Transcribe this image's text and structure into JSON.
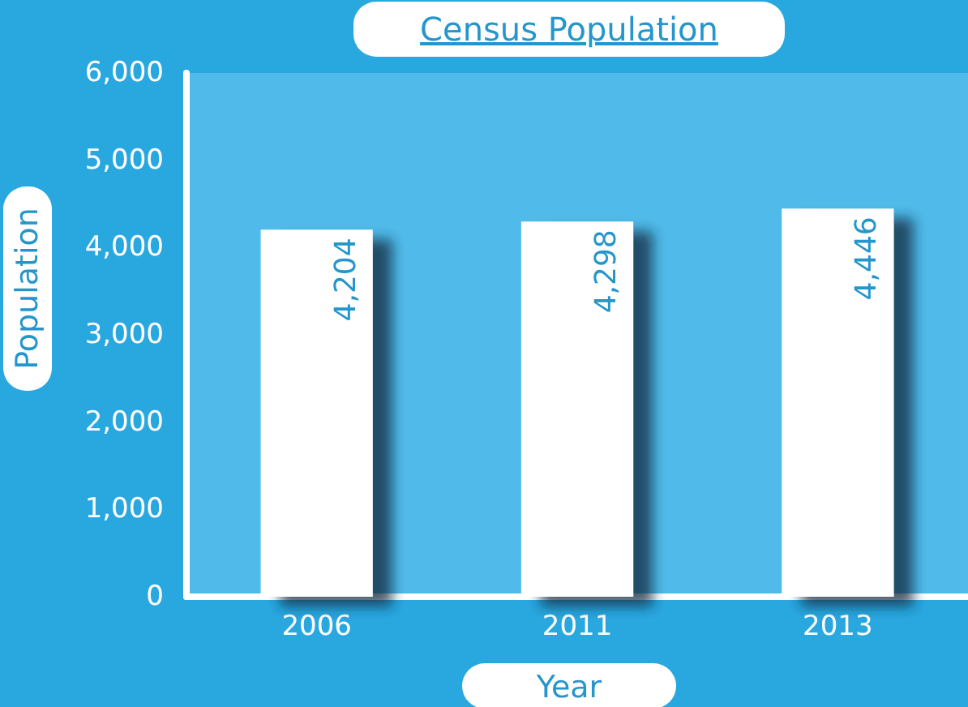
{
  "chart_data": {
    "type": "bar",
    "title": "Census Population",
    "xlabel": "Year",
    "ylabel": "Population",
    "categories": [
      "2006",
      "2011",
      "2013"
    ],
    "series": [
      {
        "color": "#ffffff",
        "values": [
          4204,
          4298,
          4446
        ],
        "value_labels": [
          "4,204",
          "4,298",
          "4,446"
        ]
      }
    ],
    "ylim": [
      0,
      6000
    ],
    "yticks": [
      {
        "value": 0,
        "label": "0"
      },
      {
        "value": 1000,
        "label": "1,000"
      },
      {
        "value": 2000,
        "label": "2,000"
      },
      {
        "value": 3000,
        "label": "3,000"
      },
      {
        "value": 4000,
        "label": "4,000"
      },
      {
        "value": 5000,
        "label": "5,000"
      },
      {
        "value": 6000,
        "label": "6,000"
      }
    ],
    "grid": false
  }
}
